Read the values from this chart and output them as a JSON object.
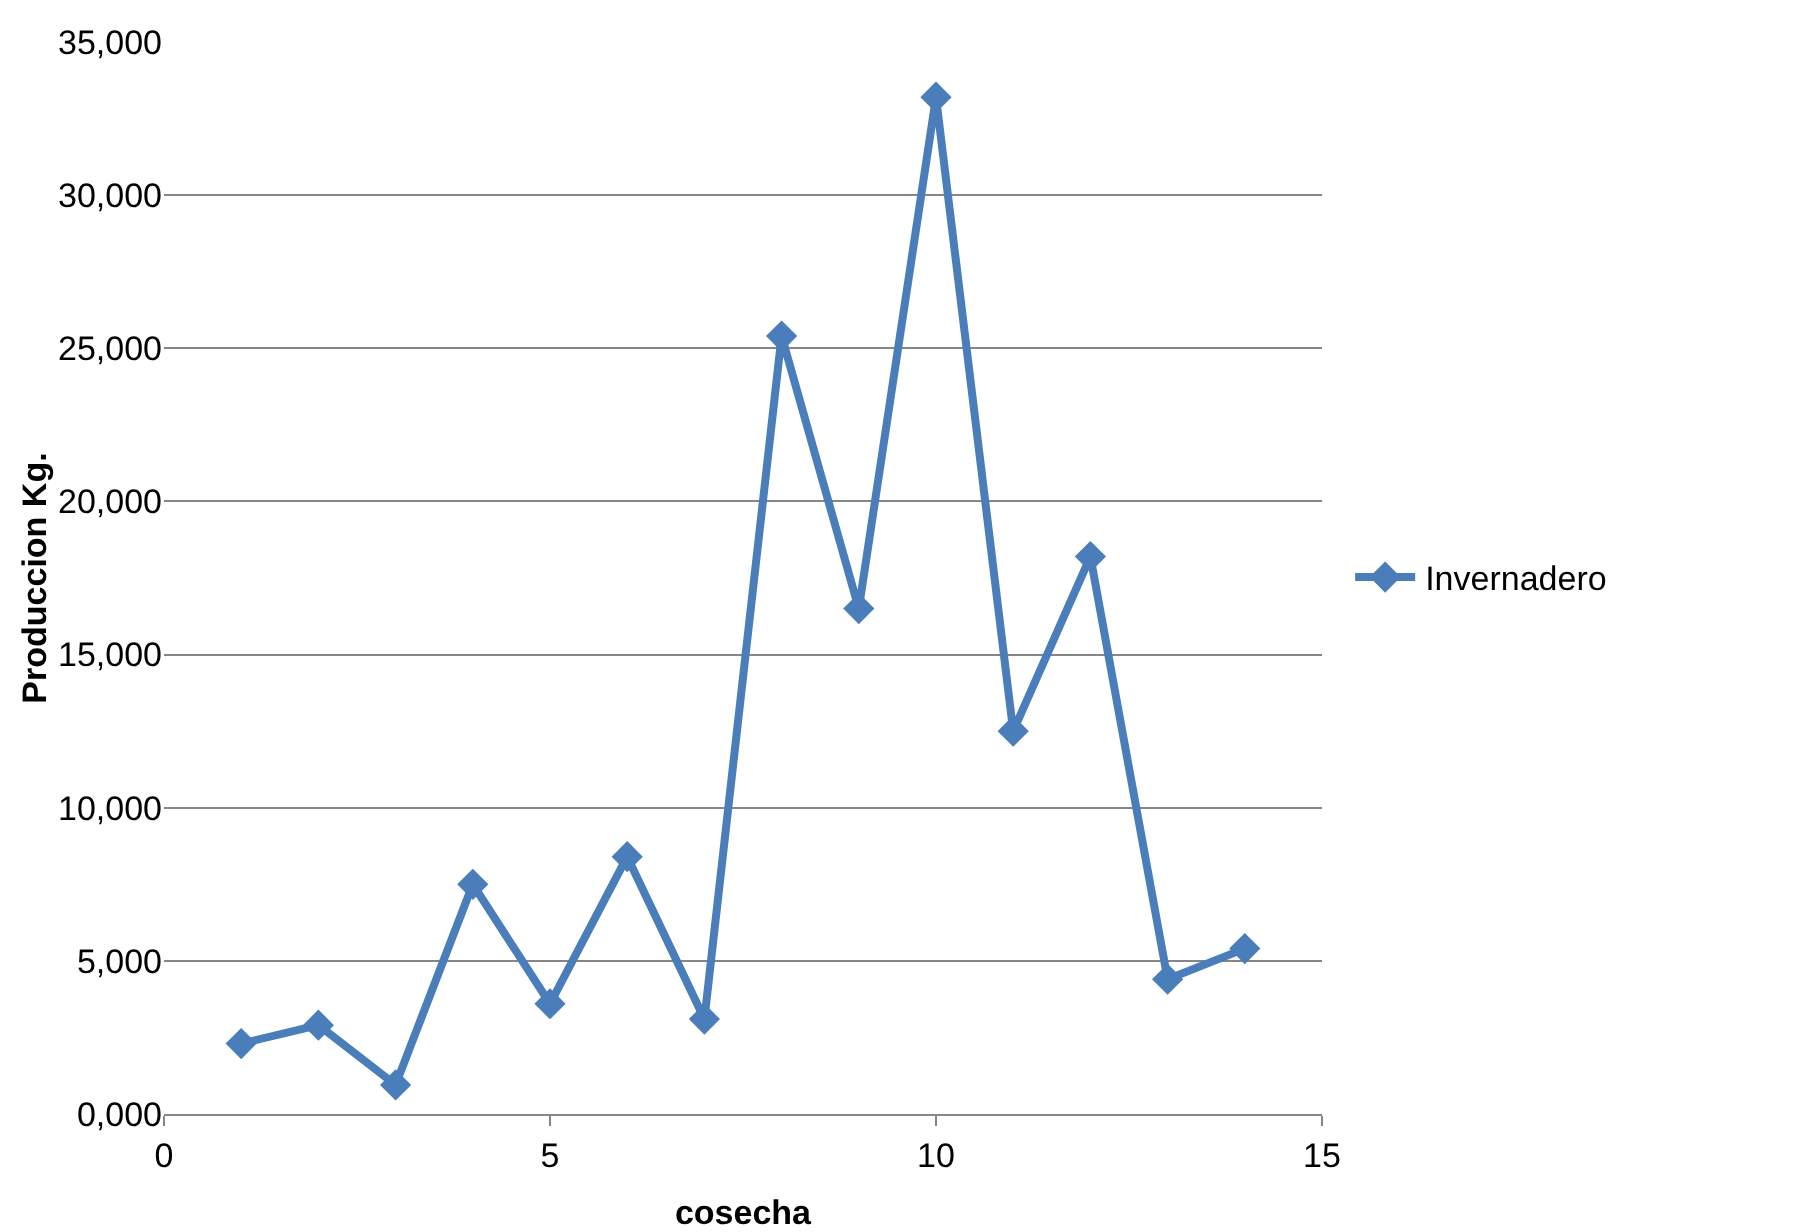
{
  "chart_data": {
    "type": "line",
    "xlabel": "cosecha",
    "ylabel": "Produccion Kg.",
    "x": [
      1,
      2,
      3,
      4,
      5,
      6,
      7,
      8,
      9,
      10,
      11,
      12,
      13,
      14
    ],
    "series": [
      {
        "name": "Invernadero",
        "color": "#4a7ebb",
        "values": [
          2300,
          2900,
          950,
          7500,
          3600,
          8400,
          3100,
          25400,
          16500,
          33200,
          12500,
          18200,
          4400,
          5400
        ]
      }
    ],
    "xlim": [
      0,
      15
    ],
    "xticks": [
      0,
      5,
      10,
      15
    ],
    "ylim": [
      0,
      35000
    ],
    "yticks": [
      {
        "value": 0,
        "label": "0,000"
      },
      {
        "value": 5000,
        "label": "5,000"
      },
      {
        "value": 10000,
        "label": "10,000"
      },
      {
        "value": 15000,
        "label": "15,000"
      },
      {
        "value": 20000,
        "label": "20,000"
      },
      {
        "value": 25000,
        "label": "25,000"
      },
      {
        "value": 30000,
        "label": "30,000"
      },
      {
        "value": 35000,
        "label": "35,000"
      }
    ],
    "grid": "y",
    "legend": "right",
    "marker": "diamond",
    "line_style": "solid"
  }
}
